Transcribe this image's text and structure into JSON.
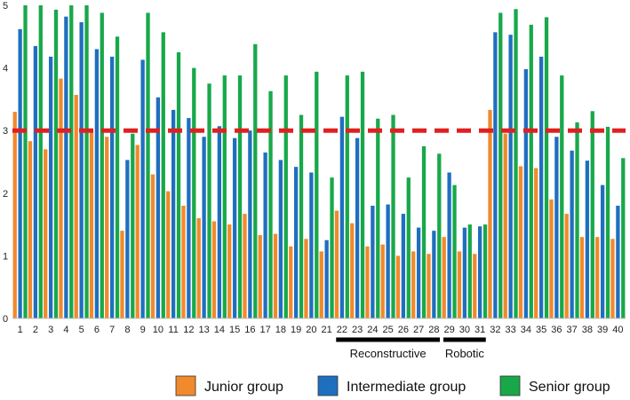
{
  "chart_data": {
    "type": "bar",
    "title": "",
    "xlabel": "",
    "ylabel": "",
    "ylim": [
      0,
      5
    ],
    "yticks": [
      0,
      1,
      2,
      3,
      4,
      5
    ],
    "grid": false,
    "legend_position": "bottom",
    "categories": [
      "1",
      "2",
      "3",
      "4",
      "5",
      "6",
      "7",
      "8",
      "9",
      "10",
      "11",
      "12",
      "13",
      "14",
      "15",
      "16",
      "17",
      "18",
      "19",
      "20",
      "21",
      "22",
      "23",
      "24",
      "25",
      "26",
      "27",
      "28",
      "29",
      "30",
      "31",
      "32",
      "33",
      "34",
      "35",
      "36",
      "37",
      "38",
      "39",
      "40"
    ],
    "series": [
      {
        "name": "Junior group",
        "color": "#f08a2c",
        "values": [
          3.3,
          2.83,
          2.7,
          3.83,
          3.57,
          3.0,
          2.9,
          1.4,
          2.77,
          2.3,
          2.03,
          1.8,
          1.6,
          1.55,
          1.5,
          1.67,
          1.33,
          1.35,
          1.15,
          1.27,
          1.07,
          1.72,
          1.52,
          1.15,
          1.18,
          1.0,
          1.07,
          1.03,
          1.3,
          1.07,
          1.03,
          3.33,
          2.95,
          2.43,
          2.4,
          1.9,
          1.67,
          1.3,
          1.3,
          1.27
        ]
      },
      {
        "name": "Intermediate group",
        "color": "#1f6fbf",
        "values": [
          4.62,
          4.35,
          4.18,
          4.82,
          4.73,
          4.3,
          4.18,
          2.53,
          4.13,
          3.53,
          3.33,
          3.2,
          2.9,
          3.07,
          2.88,
          3.0,
          2.65,
          2.53,
          2.42,
          2.33,
          1.25,
          3.22,
          2.88,
          1.8,
          1.82,
          1.67,
          1.45,
          1.4,
          2.33,
          1.45,
          1.47,
          4.57,
          4.53,
          3.98,
          4.18,
          2.9,
          2.68,
          2.52,
          2.13,
          1.8
        ]
      },
      {
        "name": "Senior group",
        "color": "#18a84a",
        "values": [
          5.0,
          5.0,
          4.93,
          5.0,
          5.0,
          4.88,
          4.5,
          2.95,
          4.88,
          4.57,
          4.25,
          4.0,
          3.75,
          3.88,
          3.88,
          4.38,
          3.63,
          3.88,
          3.25,
          3.94,
          2.25,
          3.88,
          3.94,
          3.19,
          3.25,
          2.25,
          2.75,
          2.63,
          2.13,
          1.5,
          1.5,
          4.88,
          4.94,
          4.69,
          4.81,
          3.88,
          3.13,
          3.31,
          3.06,
          2.56
        ]
      }
    ],
    "reference_line": {
      "value": 3.0,
      "color": "#e02020",
      "style": "dashed"
    },
    "groups": [
      {
        "label": "Reconstructive",
        "from": "22",
        "to": "28"
      },
      {
        "label": "Robotic",
        "from": "29",
        "to": "31"
      }
    ]
  }
}
